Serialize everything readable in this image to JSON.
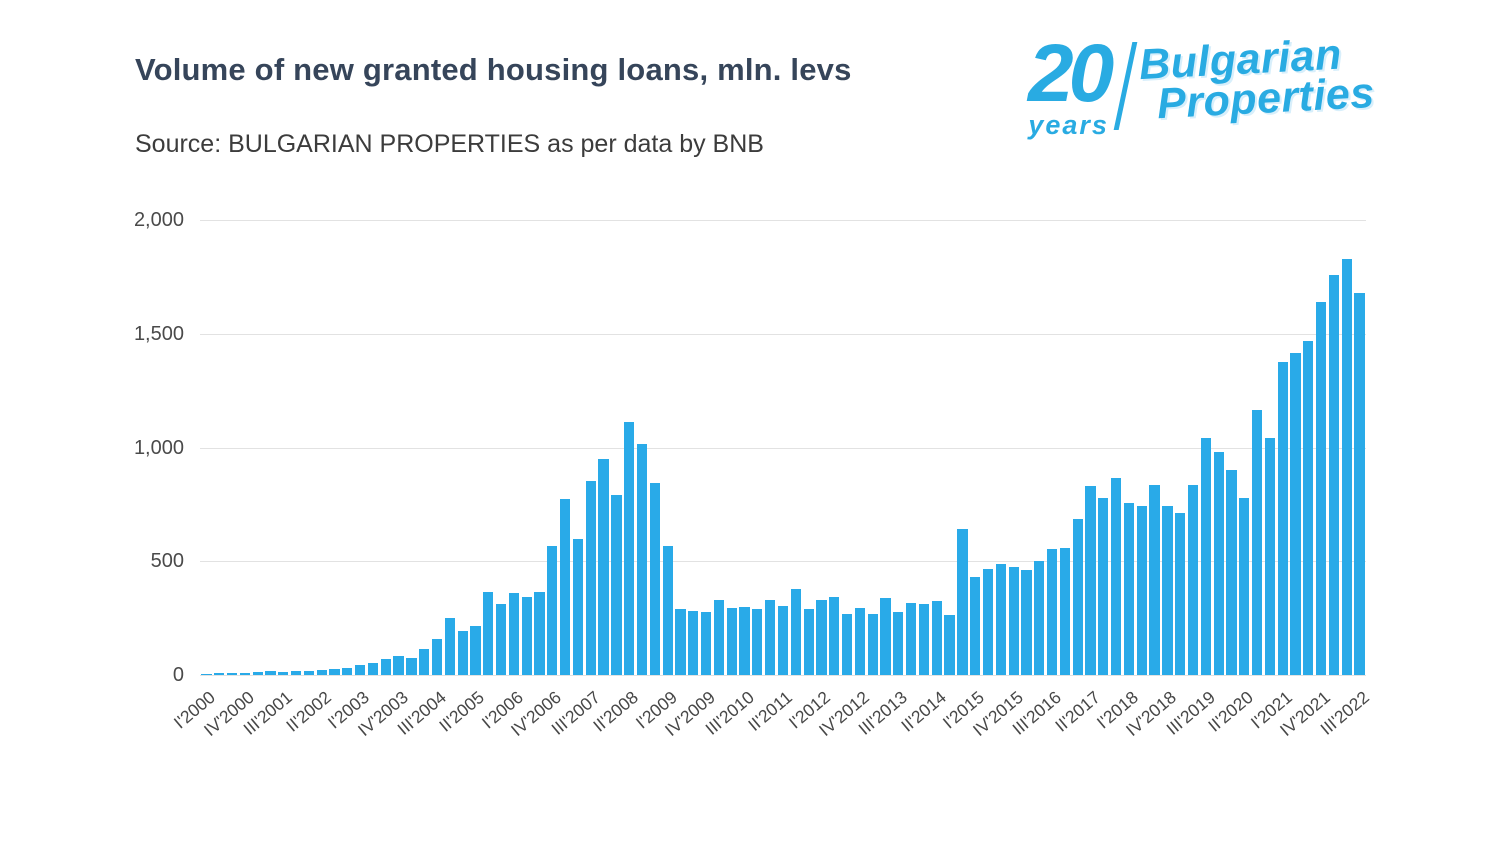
{
  "header": {
    "title": "Volume of new granted housing loans, mln. levs",
    "source": "Source: BULGARIAN PROPERTIES as per data by BNB"
  },
  "logo": {
    "number": "20",
    "years": "years",
    "name_line1": "Bulgarian",
    "name_line2": "Properties",
    "color": "#29abe2"
  },
  "chart_data": {
    "type": "bar",
    "title": "Volume of new granted housing loans, mln. levs",
    "xlabel": "",
    "ylabel": "",
    "ylim": [
      0,
      2000
    ],
    "yticks": [
      0,
      500,
      1000,
      1500,
      2000
    ],
    "ytick_labels": [
      "0",
      "500",
      "1,000",
      "1,500",
      "2,000"
    ],
    "grid": true,
    "legend": "none",
    "bar_color": "#29aae8",
    "x_tick_every": 3,
    "x_tick_labels": [
      "I'2000",
      "IV'2000",
      "III'2001",
      "II'2002",
      "I'2003",
      "IV'2003",
      "III'2004",
      "II'2005",
      "I'2006",
      "IV'2006",
      "III'2007",
      "II'2008",
      "I'2009",
      "IV'2009",
      "III'2010",
      "II'2011",
      "I'2012",
      "IV'2012",
      "III'2013",
      "II'2014",
      "I'2015",
      "IV'2015",
      "III'2016",
      "II'2017",
      "I'2018",
      "IV'2018",
      "III'2019",
      "II'2020",
      "I'2021",
      "IV'2021",
      "III'2022"
    ],
    "categories": [
      "I'2000",
      "II'2000",
      "III'2000",
      "IV'2000",
      "I'2001",
      "II'2001",
      "III'2001",
      "IV'2001",
      "I'2002",
      "II'2002",
      "III'2002",
      "IV'2002",
      "I'2003",
      "II'2003",
      "III'2003",
      "IV'2003",
      "I'2004",
      "II'2004",
      "III'2004",
      "IV'2004",
      "I'2005",
      "II'2005",
      "III'2005",
      "IV'2005",
      "I'2006",
      "II'2006",
      "III'2006",
      "IV'2006",
      "I'2007",
      "II'2007",
      "III'2007",
      "IV'2007",
      "I'2008",
      "II'2008",
      "III'2008",
      "IV'2008",
      "I'2009",
      "II'2009",
      "III'2009",
      "IV'2009",
      "I'2010",
      "II'2010",
      "III'2010",
      "IV'2010",
      "I'2011",
      "II'2011",
      "III'2011",
      "IV'2011",
      "I'2012",
      "II'2012",
      "III'2012",
      "IV'2012",
      "I'2013",
      "II'2013",
      "III'2013",
      "IV'2013",
      "I'2014",
      "II'2014",
      "III'2014",
      "IV'2014",
      "I'2015",
      "II'2015",
      "III'2015",
      "IV'2015",
      "I'2016",
      "II'2016",
      "III'2016",
      "IV'2016",
      "I'2017",
      "II'2017",
      "III'2017",
      "IV'2017",
      "I'2018",
      "II'2018",
      "III'2018",
      "IV'2018",
      "I'2019",
      "II'2019",
      "III'2019",
      "IV'2019",
      "I'2020",
      "II'2020",
      "III'2020",
      "IV'2020",
      "I'2021",
      "II'2021",
      "III'2021",
      "IV'2021",
      "I'2022",
      "II'2022",
      "III'2022"
    ],
    "values": [
      6,
      7,
      9,
      11,
      14,
      16,
      15,
      18,
      17,
      21,
      26,
      32,
      42,
      55,
      70,
      85,
      75,
      115,
      160,
      250,
      195,
      215,
      365,
      310,
      360,
      345,
      365,
      565,
      775,
      600,
      855,
      950,
      790,
      1110,
      1015,
      845,
      565,
      290,
      280,
      275,
      330,
      295,
      300,
      290,
      330,
      305,
      380,
      290,
      330,
      345,
      270,
      295,
      270,
      340,
      275,
      315,
      310,
      325,
      265,
      640,
      430,
      465,
      490,
      475,
      460,
      500,
      555,
      560,
      685,
      830,
      780,
      865,
      755,
      745,
      835,
      745,
      710,
      835,
      1040,
      980,
      900,
      780,
      1165,
      1040,
      1375,
      1415,
      1470,
      1640,
      1760,
      1830,
      1680
    ]
  }
}
